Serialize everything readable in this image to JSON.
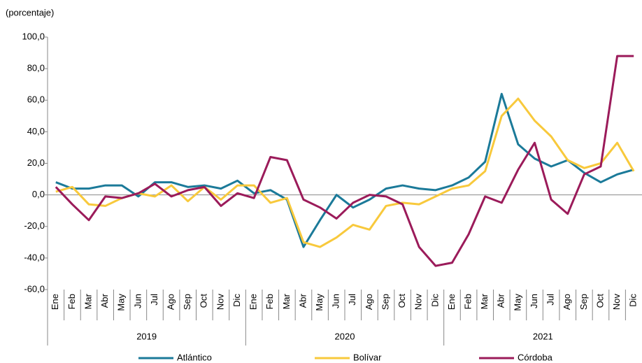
{
  "chart_data": {
    "type": "line",
    "y_label": "(porcentaje)",
    "categories": [
      "Ene",
      "Feb",
      "Mar",
      "Abr",
      "May",
      "Jun",
      "Jul",
      "Ago",
      "Sep",
      "Oct",
      "Nov",
      "Dic",
      "Ene",
      "Feb",
      "Mar",
      "Abr",
      "May",
      "Jun",
      "Jul",
      "Ago",
      "Sep",
      "Oct",
      "Nov",
      "Dic",
      "Ene",
      "Feb",
      "Mar",
      "Abr",
      "May",
      "Jun",
      "Jul",
      "Ago",
      "Sep",
      "Oct",
      "Nov",
      "Dic"
    ],
    "years": [
      "2019",
      "2020",
      "2021"
    ],
    "ylim": [
      -60,
      100
    ],
    "yticks": [
      {
        "value": -60,
        "label": "-60,0"
      },
      {
        "value": -40,
        "label": "-40,0"
      },
      {
        "value": -20,
        "label": "-20,0"
      },
      {
        "value": 0,
        "label": "0,0"
      },
      {
        "value": 20,
        "label": "20,0"
      },
      {
        "value": 40,
        "label": "40,0"
      },
      {
        "value": 60,
        "label": "60,0"
      },
      {
        "value": 80,
        "label": "80,0"
      },
      {
        "value": 100,
        "label": "100,0"
      }
    ],
    "series": [
      {
        "name": "Atlántico",
        "color": "#1b7a99",
        "values": [
          8,
          4,
          4,
          6,
          6,
          -1,
          8,
          8,
          5,
          6,
          4,
          9,
          1,
          3,
          -3,
          -33,
          -16,
          0,
          -8,
          -3,
          4,
          6,
          4,
          3,
          6,
          11,
          21,
          64,
          32,
          23,
          18,
          22,
          14,
          8,
          13,
          16
        ]
      },
      {
        "name": "Bolívar",
        "color": "#f8c93c",
        "values": [
          2,
          5,
          -6,
          -7,
          -2,
          1,
          -1,
          6,
          -4,
          5,
          -3,
          6,
          6,
          -5,
          -2,
          -30,
          -33,
          -27,
          -19,
          -22,
          -7,
          -5,
          -6,
          -1,
          4,
          6,
          15,
          50,
          61,
          47,
          37,
          22,
          17,
          20,
          33,
          15
        ]
      },
      {
        "name": "Córdoba",
        "color": "#9b1b5a",
        "values": [
          5,
          -6,
          -16,
          -1,
          -2,
          1,
          7,
          -1,
          3,
          5,
          -7,
          1,
          -2,
          24,
          22,
          -3,
          -8,
          -15,
          -5,
          0,
          -1,
          -6,
          -33,
          -45,
          -43,
          -25,
          -1,
          -5,
          16,
          33,
          -3,
          -12,
          13,
          18,
          88,
          88
        ]
      }
    ]
  }
}
